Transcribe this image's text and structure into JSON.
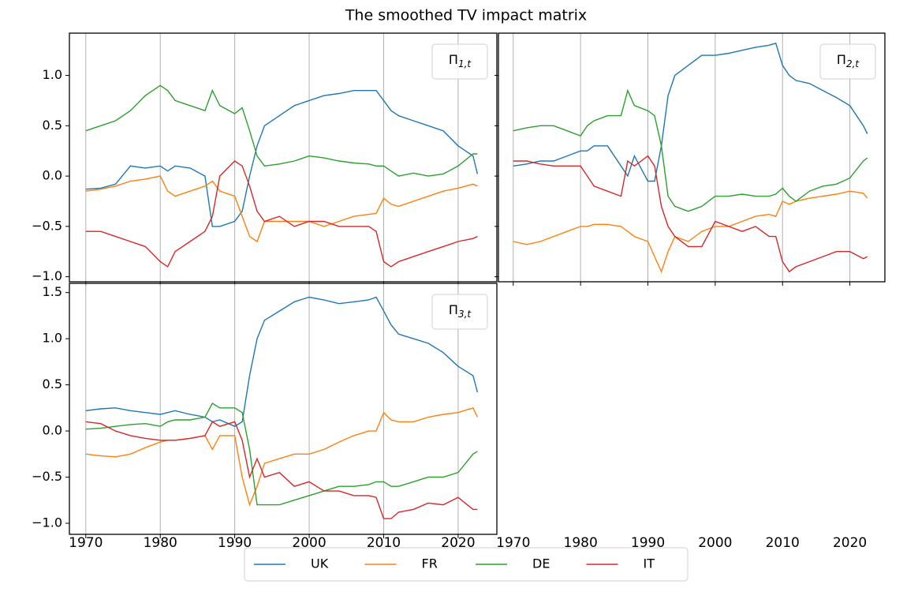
{
  "title": "The smoothed TV impact matrix",
  "legend": "lower center",
  "chart_data": [
    {
      "type": "line",
      "panel_label": "Π",
      "panel_subscript": "1,t",
      "xtick_labels": false,
      "ytick_labels": true,
      "x": [
        1970,
        1972,
        1974,
        1976,
        1978,
        1980,
        1981,
        1982,
        1984,
        1986,
        1987,
        1988,
        1990,
        1991,
        1992,
        1993,
        1994,
        1996,
        1998,
        2000,
        2002,
        2004,
        2006,
        2008,
        2009,
        2010,
        2011,
        2012,
        2014,
        2016,
        2018,
        2020,
        2022,
        2022.6
      ],
      "xlim": [
        1967.8,
        2025.2
      ],
      "xticks": [
        1970,
        1980,
        1990,
        2000,
        2010,
        2020
      ],
      "ylim": [
        -1.05,
        1.42
      ],
      "yticks": [
        {
          "value": -1,
          "label": "−1.0"
        },
        {
          "value": -0.5,
          "label": "−0.5"
        },
        {
          "value": 0,
          "label": "0.0"
        },
        {
          "value": 0.5,
          "label": "0.5"
        },
        {
          "value": 1,
          "label": "1.0"
        }
      ],
      "grid": "x",
      "series": [
        {
          "name": "UK",
          "color": "#1f77b4",
          "values": [
            -0.13,
            -0.12,
            -0.08,
            0.1,
            0.08,
            0.1,
            0.05,
            0.1,
            0.08,
            0.0,
            -0.5,
            -0.5,
            -0.45,
            -0.35,
            0.0,
            0.3,
            0.5,
            0.6,
            0.7,
            0.75,
            0.8,
            0.82,
            0.85,
            0.85,
            0.85,
            0.75,
            0.65,
            0.6,
            0.55,
            0.5,
            0.45,
            0.3,
            0.2,
            0.02
          ]
        },
        {
          "name": "FR",
          "color": "#ff7f0e",
          "values": [
            -0.15,
            -0.13,
            -0.1,
            -0.05,
            -0.03,
            0.0,
            -0.15,
            -0.2,
            -0.15,
            -0.1,
            -0.05,
            -0.15,
            -0.2,
            -0.4,
            -0.6,
            -0.65,
            -0.45,
            -0.45,
            -0.45,
            -0.45,
            -0.5,
            -0.45,
            -0.4,
            -0.38,
            -0.37,
            -0.22,
            -0.28,
            -0.3,
            -0.25,
            -0.2,
            -0.15,
            -0.12,
            -0.08,
            -0.1
          ]
        },
        {
          "name": "DE",
          "color": "#2ca02c",
          "values": [
            0.45,
            0.5,
            0.55,
            0.65,
            0.8,
            0.9,
            0.85,
            0.75,
            0.7,
            0.65,
            0.85,
            0.7,
            0.62,
            0.68,
            0.45,
            0.2,
            0.1,
            0.12,
            0.15,
            0.2,
            0.18,
            0.15,
            0.13,
            0.12,
            0.1,
            0.1,
            0.05,
            0.0,
            0.03,
            0.0,
            0.02,
            0.1,
            0.22,
            0.22
          ]
        },
        {
          "name": "IT",
          "color": "#d62728",
          "values": [
            -0.55,
            -0.55,
            -0.6,
            -0.65,
            -0.7,
            -0.85,
            -0.9,
            -0.75,
            -0.65,
            -0.55,
            -0.4,
            0.0,
            0.15,
            0.1,
            -0.1,
            -0.35,
            -0.45,
            -0.4,
            -0.5,
            -0.45,
            -0.45,
            -0.5,
            -0.5,
            -0.5,
            -0.55,
            -0.85,
            -0.9,
            -0.85,
            -0.8,
            -0.75,
            -0.7,
            -0.65,
            -0.62,
            -0.6
          ]
        }
      ]
    },
    {
      "type": "line",
      "panel_label": "Π",
      "panel_subscript": "2,t",
      "xtick_labels": true,
      "ytick_labels": false,
      "x": [
        1970,
        1972,
        1974,
        1976,
        1978,
        1980,
        1981,
        1982,
        1984,
        1986,
        1987,
        1988,
        1990,
        1991,
        1992,
        1993,
        1994,
        1996,
        1998,
        2000,
        2002,
        2004,
        2006,
        2008,
        2009,
        2010,
        2011,
        2012,
        2014,
        2016,
        2018,
        2020,
        2022,
        2022.6
      ],
      "xlim": [
        1967.8,
        2025.2
      ],
      "xticks": [
        1970,
        1980,
        1990,
        2000,
        2010,
        2020
      ],
      "ylim": [
        -1.05,
        1.42
      ],
      "yticks": [
        -1,
        -0.5,
        0,
        0.5,
        1
      ],
      "grid": "x",
      "series": [
        {
          "color": "#1f77b4",
          "values": [
            0.1,
            0.12,
            0.15,
            0.15,
            0.2,
            0.25,
            0.25,
            0.3,
            0.3,
            0.1,
            0.0,
            0.2,
            -0.05,
            -0.05,
            0.3,
            0.8,
            1.0,
            1.1,
            1.2,
            1.2,
            1.22,
            1.25,
            1.28,
            1.3,
            1.32,
            1.1,
            1.0,
            0.95,
            0.92,
            0.85,
            0.78,
            0.7,
            0.5,
            0.42
          ]
        },
        {
          "color": "#ff7f0e",
          "values": [
            -0.65,
            -0.68,
            -0.65,
            -0.6,
            -0.55,
            -0.5,
            -0.5,
            -0.48,
            -0.48,
            -0.5,
            -0.55,
            -0.6,
            -0.65,
            -0.8,
            -0.95,
            -0.75,
            -0.6,
            -0.65,
            -0.55,
            -0.5,
            -0.5,
            -0.45,
            -0.4,
            -0.38,
            -0.4,
            -0.25,
            -0.28,
            -0.25,
            -0.22,
            -0.2,
            -0.18,
            -0.15,
            -0.17,
            -0.22
          ]
        },
        {
          "color": "#2ca02c",
          "values": [
            0.45,
            0.48,
            0.5,
            0.5,
            0.45,
            0.4,
            0.5,
            0.55,
            0.6,
            0.6,
            0.85,
            0.7,
            0.65,
            0.6,
            0.3,
            -0.2,
            -0.3,
            -0.35,
            -0.3,
            -0.2,
            -0.2,
            -0.18,
            -0.2,
            -0.2,
            -0.18,
            -0.12,
            -0.2,
            -0.25,
            -0.15,
            -0.1,
            -0.08,
            -0.02,
            0.15,
            0.18
          ]
        },
        {
          "color": "#d62728",
          "values": [
            0.15,
            0.15,
            0.12,
            0.1,
            0.1,
            0.1,
            0.0,
            -0.1,
            -0.15,
            -0.2,
            0.15,
            0.1,
            0.2,
            0.1,
            -0.3,
            -0.5,
            -0.6,
            -0.7,
            -0.7,
            -0.45,
            -0.5,
            -0.55,
            -0.5,
            -0.6,
            -0.6,
            -0.85,
            -0.95,
            -0.9,
            -0.85,
            -0.8,
            -0.75,
            -0.75,
            -0.82,
            -0.8
          ]
        }
      ]
    },
    {
      "type": "line",
      "panel_label": "Π",
      "panel_subscript": "3,t",
      "xtick_labels": true,
      "ytick_labels": true,
      "x": [
        1970,
        1972,
        1974,
        1976,
        1978,
        1980,
        1981,
        1982,
        1984,
        1986,
        1987,
        1988,
        1990,
        1991,
        1992,
        1993,
        1994,
        1996,
        1998,
        2000,
        2002,
        2004,
        2006,
        2008,
        2009,
        2010,
        2011,
        2012,
        2014,
        2016,
        2018,
        2020,
        2022,
        2022.6
      ],
      "xlim": [
        1967.8,
        2025.2
      ],
      "xticks": [
        1970,
        1980,
        1990,
        2000,
        2010,
        2020
      ],
      "ylim": [
        -1.12,
        1.6
      ],
      "yticks": [
        {
          "value": -1,
          "label": "−1.0"
        },
        {
          "value": -0.5,
          "label": "−0.5"
        },
        {
          "value": 0,
          "label": "0.0"
        },
        {
          "value": 0.5,
          "label": "0.5"
        },
        {
          "value": 1,
          "label": "1.0"
        },
        {
          "value": 1.5,
          "label": "1.5"
        }
      ],
      "grid": "x",
      "series": [
        {
          "color": "#1f77b4",
          "values": [
            0.22,
            0.24,
            0.25,
            0.22,
            0.2,
            0.18,
            0.2,
            0.22,
            0.18,
            0.15,
            0.1,
            0.12,
            0.05,
            0.1,
            0.6,
            1.0,
            1.2,
            1.3,
            1.4,
            1.45,
            1.42,
            1.38,
            1.4,
            1.42,
            1.45,
            1.3,
            1.15,
            1.05,
            1.0,
            0.95,
            0.85,
            0.7,
            0.6,
            0.42
          ]
        },
        {
          "color": "#ff7f0e",
          "values": [
            -0.25,
            -0.27,
            -0.28,
            -0.25,
            -0.18,
            -0.12,
            -0.1,
            -0.1,
            -0.08,
            -0.05,
            -0.2,
            -0.05,
            -0.05,
            -0.5,
            -0.8,
            -0.6,
            -0.35,
            -0.3,
            -0.25,
            -0.25,
            -0.2,
            -0.12,
            -0.05,
            0.0,
            0.0,
            0.2,
            0.12,
            0.1,
            0.1,
            0.15,
            0.18,
            0.2,
            0.25,
            0.15
          ]
        },
        {
          "color": "#2ca02c",
          "values": [
            0.02,
            0.03,
            0.05,
            0.07,
            0.08,
            0.05,
            0.1,
            0.12,
            0.12,
            0.15,
            0.3,
            0.25,
            0.25,
            0.2,
            -0.2,
            -0.8,
            -0.8,
            -0.8,
            -0.75,
            -0.7,
            -0.65,
            -0.6,
            -0.6,
            -0.58,
            -0.55,
            -0.55,
            -0.6,
            -0.6,
            -0.55,
            -0.5,
            -0.5,
            -0.45,
            -0.25,
            -0.22
          ]
        },
        {
          "color": "#d62728",
          "values": [
            0.1,
            0.08,
            0.0,
            -0.05,
            -0.08,
            -0.1,
            -0.1,
            -0.1,
            -0.08,
            -0.05,
            0.1,
            0.05,
            0.1,
            -0.1,
            -0.5,
            -0.3,
            -0.5,
            -0.45,
            -0.6,
            -0.55,
            -0.65,
            -0.65,
            -0.7,
            -0.7,
            -0.72,
            -0.95,
            -0.95,
            -0.88,
            -0.85,
            -0.78,
            -0.8,
            -0.72,
            -0.85,
            -0.85
          ]
        }
      ]
    }
  ]
}
